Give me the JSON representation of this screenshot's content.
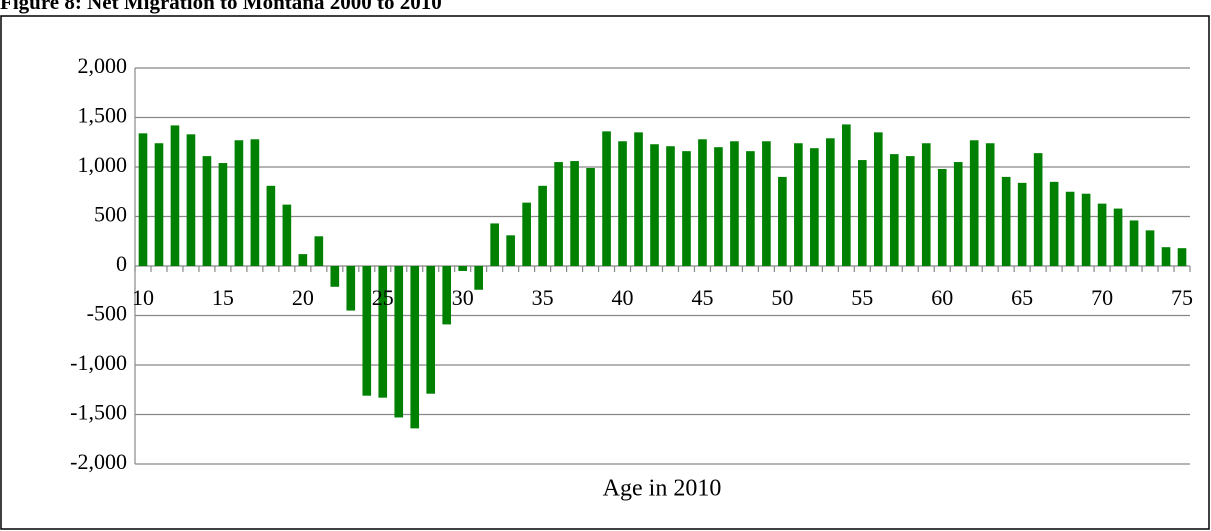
{
  "chart_data": {
    "type": "bar",
    "title": "Figure 8: Net Migration to Montana 2000 to 2010",
    "x_label": "Age in 2010",
    "categories": [
      "10",
      null,
      null,
      null,
      null,
      "15",
      null,
      null,
      null,
      null,
      "20",
      null,
      null,
      null,
      null,
      "25",
      null,
      null,
      null,
      null,
      "30",
      null,
      null,
      null,
      null,
      "35",
      null,
      null,
      null,
      null,
      "40",
      null,
      null,
      null,
      null,
      "45",
      null,
      null,
      null,
      null,
      "50",
      null,
      null,
      null,
      null,
      "55",
      null,
      null,
      null,
      null,
      "60",
      null,
      null,
      null,
      null,
      "65",
      null,
      null,
      null,
      null,
      "70",
      null,
      null,
      null,
      null,
      "75"
    ],
    "values": [
      1340,
      1240,
      1420,
      1330,
      1110,
      1040,
      1270,
      1280,
      810,
      620,
      120,
      300,
      -210,
      -450,
      -1310,
      -1330,
      -1530,
      -1640,
      -1290,
      -590,
      -50,
      -240,
      430,
      310,
      640,
      810,
      1050,
      1060,
      990,
      1360,
      1260,
      1350,
      1230,
      1210,
      1160,
      1280,
      1200,
      1260,
      1160,
      1260,
      900,
      1240,
      1190,
      1290,
      1430,
      1070,
      1350,
      1130,
      1110,
      1240,
      980,
      1050,
      1270,
      1240,
      900,
      840,
      1140,
      850,
      750,
      730,
      630,
      580,
      460,
      360,
      190,
      180
    ],
    "color": "#008000",
    "ylim": [
      -2000,
      2000
    ],
    "yticks": [
      {
        "value": -2000,
        "label": "-2,000"
      },
      {
        "value": -1500,
        "label": "-1,500"
      },
      {
        "value": -1000,
        "label": "-1,000"
      },
      -500,
      0,
      500,
      {
        "value": 1000,
        "label": "1,000"
      },
      {
        "value": 1500,
        "label": "1,500"
      },
      {
        "value": 2000,
        "label": "2,000"
      }
    ],
    "grid": true
  }
}
